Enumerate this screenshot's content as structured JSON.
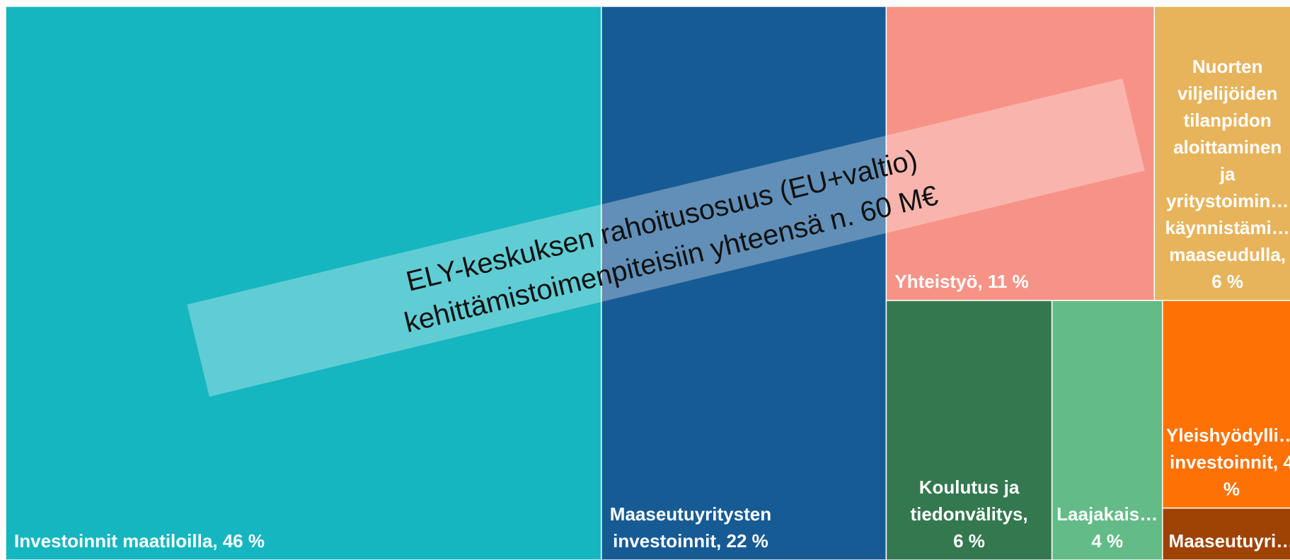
{
  "chart_data": {
    "type": "treemap",
    "labels": [
      [
        "Investoinnit maatiloilla, 46 %"
      ],
      [
        "Maaseutuyritysten",
        "investoinnit, 22 %"
      ],
      [
        "Yhteistyö, 11 %"
      ],
      [
        "Nuorten",
        "viljelijöiden",
        "tilanpidon",
        "aloittaminen",
        "ja",
        "yritystoimin…",
        "käynnistämi…",
        "maaseudulla,",
        "6 %"
      ],
      [
        "Koulutus ja",
        "tiedonvälitys,",
        "6 %"
      ],
      [
        "Laajakais…",
        "4 %"
      ],
      [
        "Yleishyödylli…",
        "investoinnit, 4",
        "%"
      ],
      [
        "Maaseutuyri…"
      ]
    ],
    "values": [
      46,
      22,
      11,
      6,
      6,
      4,
      4,
      1
    ],
    "colors": [
      "#15b6c0",
      "#175b95",
      "#f79386",
      "#e7b45c",
      "#34784f",
      "#63bb87",
      "#fe7104",
      "#9e4304"
    ],
    "annotation": [
      "ELY-keskuksen rahoitusosuus (EU+valtio)",
      "kehittämistoimenpiteisiin yhteensä n. 60 M€"
    ]
  }
}
